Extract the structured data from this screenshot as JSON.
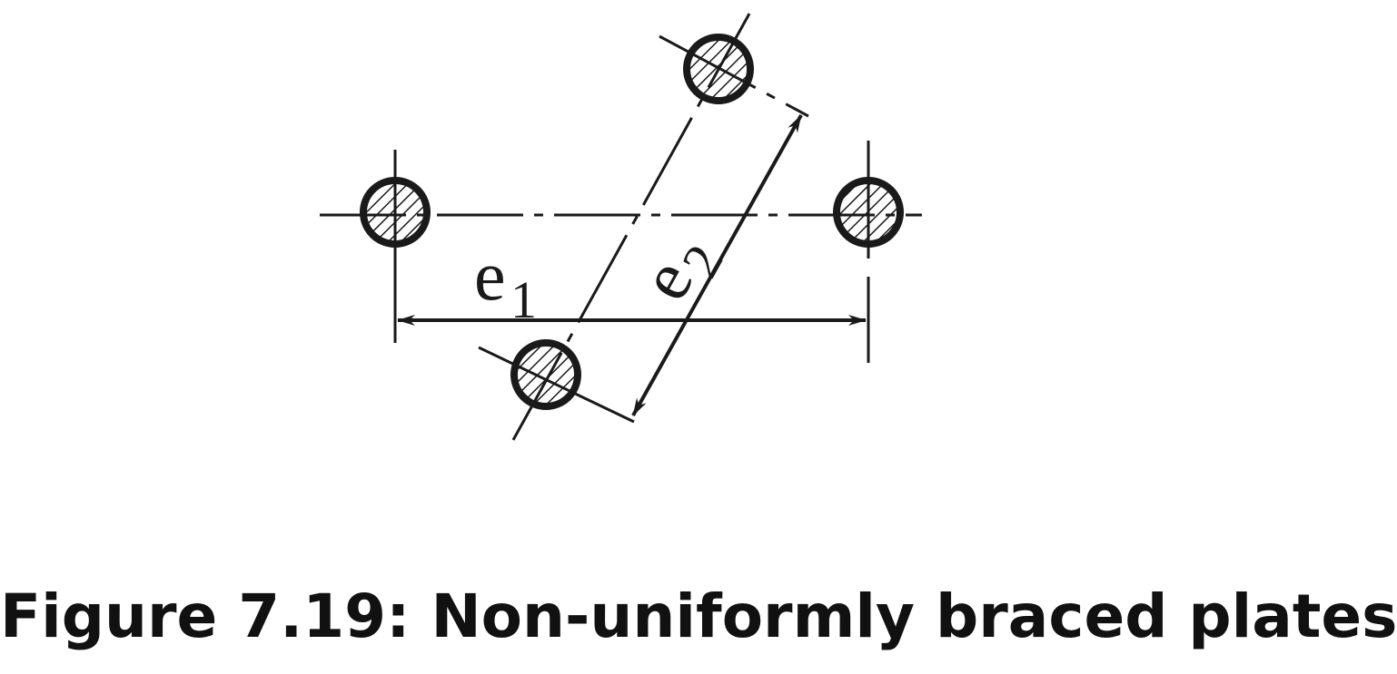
{
  "figure": {
    "caption": "Figure 7.19: Non-uniformly braced plates",
    "labels": {
      "e1": {
        "base": "e",
        "sub": "1"
      },
      "e2": {
        "base": "e",
        "sub": "2"
      }
    },
    "line_color": "#1a1a1a",
    "bolt_count": 4
  }
}
